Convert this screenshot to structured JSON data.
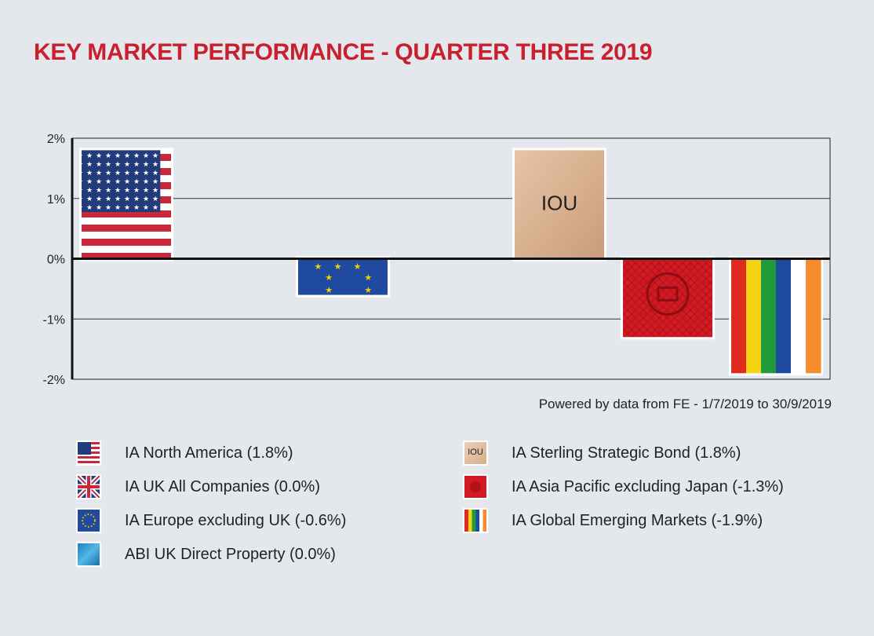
{
  "title": "KEY MARKET PERFORMANCE - QUARTER THREE 2019",
  "source": "Powered by data from FE - 1/7/2019 to 30/9/2019",
  "colors": {
    "title": "#c8202f",
    "background": "#e4e8ec"
  },
  "chart_data": {
    "type": "bar",
    "title": "KEY MARKET PERFORMANCE - QUARTER THREE 2019",
    "xlabel": "",
    "ylabel": "",
    "ylim": [
      -2,
      2
    ],
    "yticks": [
      "2%",
      "1%",
      "0%",
      "-1%",
      "-2%"
    ],
    "ytick_values": [
      2,
      1,
      0,
      -1,
      -2
    ],
    "grid": true,
    "categories": [
      "IA North America",
      "IA UK All Companies",
      "IA Europe excluding UK",
      "ABI UK Direct Property",
      "IA Sterling Strategic Bond",
      "IA Asia Pacific excluding Japan",
      "IA Global Emerging Markets"
    ],
    "values": [
      1.8,
      0.0,
      -0.6,
      0.0,
      1.8,
      -1.3,
      -1.9
    ],
    "bar_fills": [
      "us-flag",
      "uk-flag",
      "eu-flag",
      "property-blue",
      "iou",
      "asia-red",
      "rainbow"
    ],
    "bar_label_iou": "IOU"
  },
  "legend": {
    "left": [
      {
        "label": "IA North America (1.8%)",
        "swatch": "us-flag"
      },
      {
        "label": "IA UK All Companies (0.0%)",
        "swatch": "uk-flag"
      },
      {
        "label": "IA Europe excluding UK (-0.6%)",
        "swatch": "eu-flag"
      },
      {
        "label": "ABI UK Direct Property (0.0%)",
        "swatch": "property-blue"
      }
    ],
    "right": [
      {
        "label": "IA Sterling Strategic Bond (1.8%)",
        "swatch": "iou",
        "swatch_text": "IOU"
      },
      {
        "label": "IA Asia Pacific excluding Japan (-1.3%)",
        "swatch": "asia-red"
      },
      {
        "label": "IA Global Emerging Markets (-1.9%)",
        "swatch": "rainbow"
      }
    ]
  }
}
